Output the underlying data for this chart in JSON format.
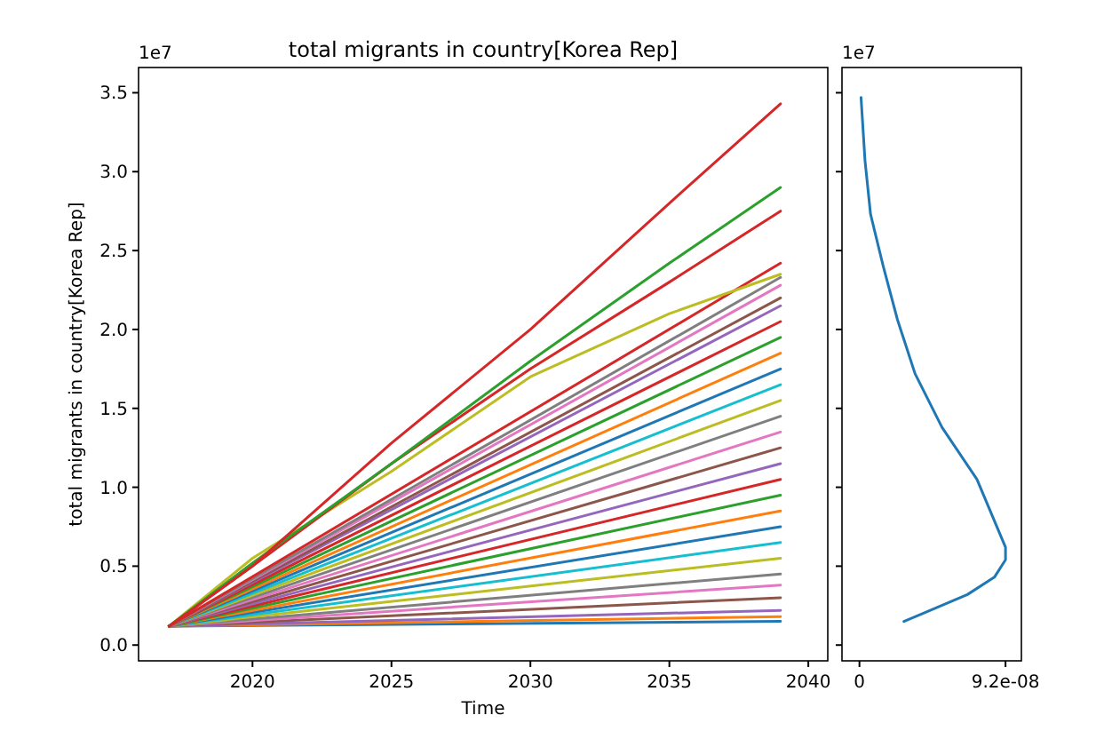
{
  "chart_data": [
    {
      "type": "line",
      "title": "total migrants in country[Korea Rep]",
      "xlabel": "Time",
      "ylabel": "total migrants in country[Korea Rep]",
      "annotations": [
        "1e7"
      ],
      "x": [
        2017,
        2039
      ],
      "xlim": [
        2015.9,
        2040.7
      ],
      "xticks": [
        2020,
        2025,
        2030,
        2035,
        2040
      ],
      "ylim": [
        -0.1,
        3.66
      ],
      "yticks": [
        {
          "value": 0,
          "label": "0.0"
        },
        {
          "value": 0.5,
          "label": "0.5"
        },
        {
          "value": 1,
          "label": "1.0"
        },
        {
          "value": 1.5,
          "label": "1.5"
        },
        {
          "value": 2,
          "label": "2.0"
        },
        {
          "value": 2.5,
          "label": "2.5"
        },
        {
          "value": 3,
          "label": "3.0"
        },
        {
          "value": 3.5,
          "label": "3.5"
        }
      ],
      "series": [
        {
          "color": "#1f77b4",
          "values": [
            0.12,
            0.15
          ]
        },
        {
          "color": "#ff7f0e",
          "values": [
            0.12,
            0.18
          ]
        },
        {
          "color": "#9467bd",
          "values": [
            0.12,
            0.22
          ]
        },
        {
          "color": "#8c564b",
          "values": [
            0.12,
            0.3
          ]
        },
        {
          "color": "#e377c2",
          "values": [
            0.12,
            0.38
          ]
        },
        {
          "color": "#7f7f7f",
          "values": [
            0.12,
            0.45
          ]
        },
        {
          "color": "#bcbd22",
          "values": [
            0.12,
            0.55
          ]
        },
        {
          "color": "#17becf",
          "values": [
            0.12,
            0.65
          ]
        },
        {
          "color": "#1f77b4",
          "values": [
            0.12,
            0.75
          ]
        },
        {
          "color": "#ff7f0e",
          "values": [
            0.12,
            0.85
          ]
        },
        {
          "color": "#2ca02c",
          "values": [
            0.12,
            0.95
          ]
        },
        {
          "color": "#d62728",
          "values": [
            0.12,
            1.05
          ]
        },
        {
          "color": "#9467bd",
          "values": [
            0.12,
            1.15
          ]
        },
        {
          "color": "#8c564b",
          "values": [
            0.12,
            1.25
          ]
        },
        {
          "color": "#e377c2",
          "values": [
            0.12,
            1.35
          ]
        },
        {
          "color": "#7f7f7f",
          "values": [
            0.12,
            1.45
          ]
        },
        {
          "color": "#bcbd22",
          "values": [
            0.12,
            1.55
          ]
        },
        {
          "color": "#17becf",
          "values": [
            0.12,
            1.65
          ]
        },
        {
          "color": "#1f77b4",
          "values": [
            0.12,
            1.75
          ]
        },
        {
          "color": "#ff7f0e",
          "values": [
            0.12,
            1.85
          ]
        },
        {
          "color": "#2ca02c",
          "values": [
            0.12,
            1.95
          ]
        },
        {
          "color": "#d62728",
          "values": [
            0.12,
            2.05
          ]
        },
        {
          "color": "#9467bd",
          "values": [
            0.12,
            2.15
          ]
        },
        {
          "color": "#8c564b",
          "values": [
            0.12,
            2.2
          ]
        },
        {
          "color": "#e377c2",
          "values": [
            0.12,
            2.28
          ]
        },
        {
          "color": "#7f7f7f",
          "values": [
            0.12,
            2.33
          ]
        },
        {
          "color": "#d62728",
          "values": [
            0.12,
            2.42
          ]
        },
        {
          "color": "#bcbd22",
          "x": [
            2017,
            2020,
            2025,
            2030,
            2035,
            2039
          ],
          "values": [
            0.12,
            0.55,
            1.1,
            1.7,
            2.1,
            2.35
          ]
        },
        {
          "color": "#d62728",
          "x": [
            2017,
            2020,
            2025,
            2030,
            2035,
            2039
          ],
          "values": [
            0.12,
            0.5,
            1.15,
            1.75,
            2.3,
            2.75
          ]
        },
        {
          "color": "#2ca02c",
          "x": [
            2017,
            2020,
            2025,
            2030,
            2035,
            2039
          ],
          "values": [
            0.12,
            0.52,
            1.15,
            1.8,
            2.42,
            2.9
          ]
        },
        {
          "color": "#d62728",
          "x": [
            2017,
            2020,
            2025,
            2030,
            2035,
            2039
          ],
          "values": [
            0.12,
            0.5,
            1.28,
            2.0,
            2.8,
            3.43
          ]
        }
      ]
    },
    {
      "type": "line",
      "annotations": [
        "1e7"
      ],
      "tick_labels": "x",
      "xlim": [
        -1.1e-08,
        1.02e-07
      ],
      "xticks": [
        0,
        {
          "value": 9.2e-08,
          "label": "9.2e-08"
        }
      ],
      "ylim": [
        -0.1,
        3.66
      ],
      "yticks": [
        {
          "value": 0,
          "label": null
        },
        {
          "value": 0.5,
          "label": null
        },
        {
          "value": 1,
          "label": null
        },
        {
          "value": 1.5,
          "label": null
        },
        {
          "value": 2,
          "label": null
        },
        {
          "value": 2.5,
          "label": null
        },
        {
          "value": 3,
          "label": null
        },
        {
          "value": 3.5,
          "label": null
        }
      ],
      "series": [
        {
          "color": "#1f77b4",
          "x": [
            2.8e-08,
            4e-08,
            6.8e-08,
            8.5e-08,
            9.2e-08,
            9.2e-08,
            7.4e-08,
            5.2e-08,
            3.5e-08,
            2.4e-08,
            1.5e-08,
            7e-09,
            3.5e-09,
            1e-09
          ],
          "values": [
            0.15,
            0.2,
            0.32,
            0.43,
            0.54,
            0.62,
            1.05,
            1.38,
            1.72,
            2.06,
            2.4,
            2.73,
            3.07,
            3.47
          ]
        }
      ]
    }
  ]
}
